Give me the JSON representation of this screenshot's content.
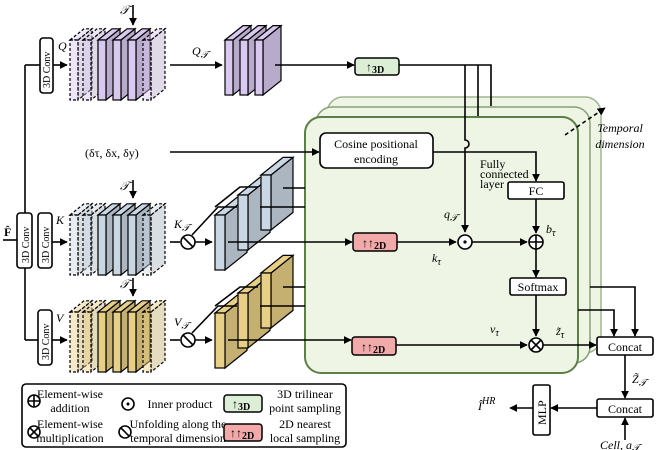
{
  "labels": {
    "F_hat": "F̂",
    "conv": "3D Conv",
    "Q": "Q",
    "K": "K",
    "V": "V",
    "T": "𝒯",
    "Q_T": "Q",
    "K_T": "K",
    "V_T": "V",
    "sub_T": "𝒯",
    "delta": "(δτ, δx, δy)",
    "cosine_1": "Cosine positional",
    "cosine_2": "encoding",
    "fc_note_1": "Fully",
    "fc_note_2": "connected",
    "fc_note_3": "layer",
    "fc": "FC",
    "softmax": "Softmax",
    "q_T": "q",
    "k_tau": "k",
    "b_tau": "b",
    "v_tau": "v",
    "z_tau": "z̃",
    "sub_tau": "τ",
    "sub_i": "i",
    "temporal_1": "Temporal",
    "temporal_2": "dimension",
    "concat": "Concat",
    "Z_T": "Z̃",
    "mlp": "MLP",
    "I_HR": "Î",
    "sup_HR": "HR",
    "cell": "Cell, a",
    "up3d": "↑",
    "up3d_sub": "3D",
    "up2d": "↑↑",
    "up2d_sub": "2D"
  },
  "legend": {
    "add_1": "Element-wise",
    "add_2": "addition",
    "mul_1": "Element-wise",
    "mul_2": "multiplication",
    "inner": "Inner product",
    "unfold_1": "Unfolding along the",
    "unfold_2": "temporal dimension",
    "tri_1": "3D trilinear",
    "tri_2": "point sampling",
    "near_1": "2D nearest",
    "near_2": "local sampling"
  },
  "colors": {
    "query": "#d9c8ef",
    "key": "#c9d6e3",
    "value": "#e8cf86",
    "panel": "#eef5e4",
    "panel_border": "#5c7f45",
    "up3d": "#dcefd6",
    "up2d": "#f2a9a9"
  }
}
